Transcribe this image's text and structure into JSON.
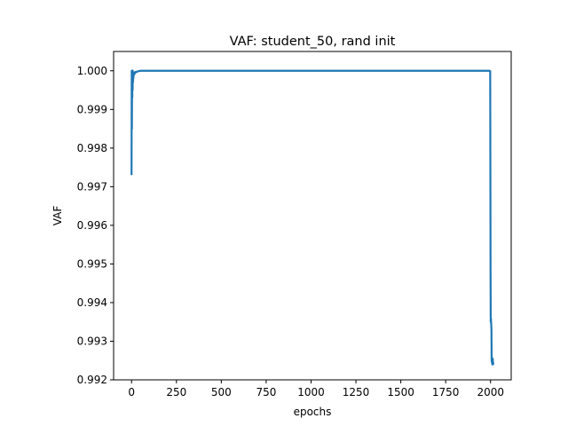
{
  "chart_data": {
    "type": "line",
    "title": "VAF: student_50, rand init",
    "xlabel": "epochs",
    "ylabel": "VAF",
    "xlim": [
      -100,
      2115
    ],
    "ylim": [
      0.992,
      1.0005
    ],
    "grid": false,
    "legend": "none",
    "x_ticks": [
      0,
      250,
      500,
      750,
      1000,
      1250,
      1500,
      1750,
      2000
    ],
    "x_tick_labels": [
      "0",
      "250",
      "500",
      "750",
      "1000",
      "1250",
      "1500",
      "1750",
      "2000"
    ],
    "y_ticks": [
      0.992,
      0.993,
      0.994,
      0.995,
      0.996,
      0.997,
      0.998,
      0.999,
      1.0
    ],
    "y_tick_labels": [
      "0.992",
      "0.993",
      "0.994",
      "0.995",
      "0.996",
      "0.997",
      "0.998",
      "0.999",
      "1.000"
    ],
    "series": [
      {
        "color": "#1f77b4",
        "x": [
          0,
          1,
          2,
          3,
          4,
          5,
          6,
          7,
          8,
          9,
          10,
          12,
          14,
          16,
          18,
          20,
          25,
          30,
          40,
          50,
          60,
          80,
          100,
          150,
          200,
          300,
          500,
          750,
          1000,
          1250,
          1500,
          1750,
          1980,
          1995,
          1998,
          2000,
          2001,
          2002,
          2003,
          2004,
          2005,
          2006,
          2008,
          2010,
          2012,
          2014,
          2016
        ],
        "y": [
          0.9973,
          1.0,
          0.9985,
          1.0,
          0.9993,
          1.0,
          0.9995,
          1.0,
          0.9997,
          0.9999,
          0.9998,
          0.99995,
          0.9999,
          0.99995,
          0.99993,
          0.99997,
          0.99996,
          0.99998,
          0.99999,
          1.0,
          1.0,
          1.0,
          1.0,
          1.0,
          1.0,
          1.0,
          1.0,
          1.0,
          1.0,
          1.0,
          1.0,
          1.0,
          1.0,
          1.0,
          0.99999,
          0.9948,
          0.9935,
          0.9936,
          0.9935,
          0.9934,
          0.9933,
          0.9925,
          0.99245,
          0.9924,
          0.99255,
          0.9924,
          0.99245
        ]
      }
    ]
  }
}
